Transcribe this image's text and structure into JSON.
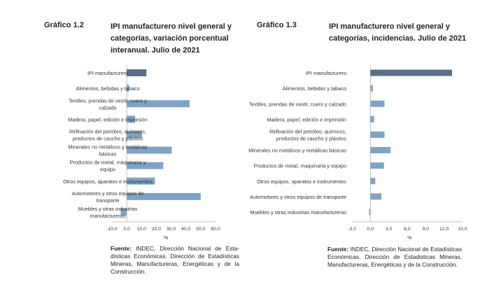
{
  "panels": [
    {
      "number": "Gráfico 1.2",
      "title": "IPI manufacturero nivel general y categorías, variación porcentual interanual. Julio de 2021",
      "source_label": "Fuente:",
      "source_text": "INDEC, Dirección Nacional de Esta­dísticas Económicas. Dirección de Estadísti­cas Mineras, Manufactureras, Energéticas y de la Construcción."
    },
    {
      "number": "Gráfico 1.3",
      "title": "IPI manufacturero nivel general y categorías, incidencias. Julio de 2021",
      "source_label": "Fuente:",
      "source_text": "INDEC, Dirección Nacional de Esta­dísticas Económicas. Dirección de Estadisti­cas Mineras, Manufactureras, Energéticas y de la Construcción."
    }
  ],
  "chart_data": [
    {
      "type": "bar",
      "orientation": "horizontal",
      "categories": [
        [
          "IPI manufacturero"
        ],
        [
          "Alimentos, bebidas y tabaco"
        ],
        [
          "Textiles, prendas de vestir, cuero y",
          "calzado"
        ],
        [
          "Madera, papel, edición e impresión"
        ],
        [
          "Refinación del petróleo, químicos,",
          "productos de caucho y plástico"
        ],
        [
          "Minerales no metálicos y metálicas",
          "básicas"
        ],
        [
          "Productos de metal, maquinaria y",
          "equipo"
        ],
        [
          "Otros equipos, aparatos e instrumentos"
        ],
        [
          "Automotores y otros equipos de",
          "transporte"
        ],
        [
          "Muebles y otras industrias",
          "manufactureras"
        ]
      ],
      "values": [
        13.3,
        1.5,
        42.5,
        5.7,
        10.3,
        30.4,
        24.7,
        19.0,
        50.0,
        -4.1
      ],
      "xlim": [
        -10,
        60
      ],
      "xticks": [
        "-10,0",
        "0,0",
        "10,0",
        "20,0",
        "30,0",
        "40,0",
        "50,0",
        "60,0"
      ],
      "xlabel": "%",
      "colors": {
        "highlight": "#5a6f86",
        "bar": "#7fa3c6"
      }
    },
    {
      "type": "bar",
      "orientation": "horizontal",
      "categories": [
        [
          "IPI manufacturero"
        ],
        [
          "Alimentos, bebidas y tabaco"
        ],
        [
          "Textiles, prendas de vestir, cuero y calzado"
        ],
        [
          "Madera, papel, edición e impresión"
        ],
        [
          "Refinación del petróleo, químicos,",
          "productos de caucho y plástico"
        ],
        [
          "Minerales no metálicos y metálicas básicas"
        ],
        [
          "Productos de metal, maquinaria y equipo"
        ],
        [
          "Otros equipos, aparatos e instrumentos"
        ],
        [
          "Automotores y otros equipos de transporte"
        ],
        [
          "Muebles y otras industrias manufactureras"
        ]
      ],
      "values": [
        13.3,
        0.4,
        2.3,
        0.6,
        2.3,
        3.3,
        2.2,
        0.8,
        1.8,
        -0.2
      ],
      "xlim": [
        -3,
        15
      ],
      "xticks": [
        "-3,0",
        "0,0",
        "3,0",
        "6,0",
        "9,0",
        "12,0",
        "15,0"
      ],
      "xlabel": "%",
      "colors": {
        "highlight": "#5a6f86",
        "bar": "#7fa3c6"
      }
    }
  ]
}
